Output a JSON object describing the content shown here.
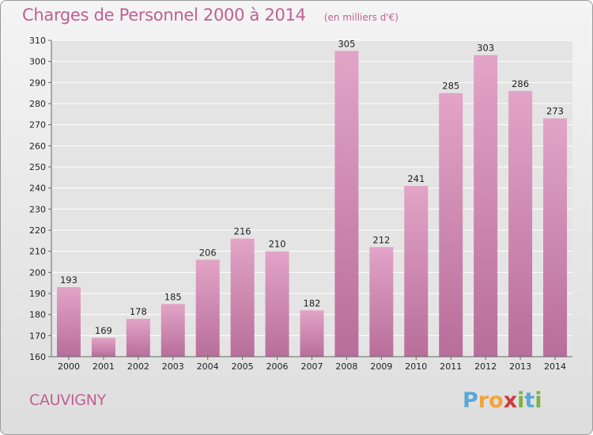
{
  "header": {
    "title": "Charges de Personnel 2000 à 2014",
    "subtitle": "(en milliers d'€)"
  },
  "commune": "CAUVIGNY",
  "logo": {
    "text": "Proxiti",
    "letters": [
      "P",
      "r",
      "o",
      "x",
      "i",
      "t",
      "i"
    ],
    "colors": [
      "#5aa7d8",
      "#f1a43a",
      "#f1a43a",
      "#d03a3a",
      "#7cb342",
      "#5aa7d8",
      "#7cb342"
    ]
  },
  "colors": {
    "accent": "#c06090",
    "bar_top": "#e2a4c7",
    "bar_bottom": "#b86e9a",
    "grid": "#ffffff"
  },
  "chart_data": {
    "type": "bar",
    "title": "Charges de Personnel 2000 à 2014",
    "subtitle": "(en milliers d'€)",
    "categories": [
      "2000",
      "2001",
      "2002",
      "2003",
      "2004",
      "2005",
      "2006",
      "2007",
      "2008",
      "2009",
      "2010",
      "2011",
      "2012",
      "2013",
      "2014"
    ],
    "values": [
      193,
      169,
      178,
      185,
      206,
      216,
      210,
      182,
      305,
      212,
      241,
      285,
      303,
      286,
      273
    ],
    "ylim": [
      160,
      310
    ],
    "yticks": [
      160,
      170,
      180,
      190,
      200,
      210,
      220,
      230,
      240,
      250,
      260,
      270,
      280,
      290,
      300,
      310
    ],
    "grid": true,
    "xlabel": "",
    "ylabel": ""
  }
}
